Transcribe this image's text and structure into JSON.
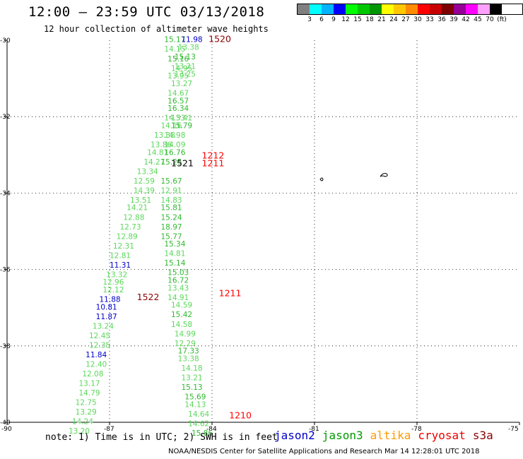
{
  "header": {
    "title": "12:00 – 23:59 UTC 03/13/2018",
    "subtitle": "12 hour collection of altimeter wave heights"
  },
  "scale": {
    "colors": [
      "#808080",
      "#00ffff",
      "#00b4ff",
      "#0000ff",
      "#00ff00",
      "#00c800",
      "#009600",
      "#ffff00",
      "#ffc800",
      "#ff8c00",
      "#ff0000",
      "#c80000",
      "#800000",
      "#960096",
      "#ff00ff",
      "#ffa0ff",
      "#000000"
    ],
    "ticks": [
      "3",
      "6",
      "9",
      "12",
      "15",
      "18",
      "21",
      "24",
      "27",
      "30",
      "33",
      "36",
      "39",
      "42",
      "45",
      "70",
      "(ft)"
    ]
  },
  "map": {
    "lat_labels": [
      "-30",
      "-32",
      "-34",
      "-36",
      "-38",
      "-40"
    ],
    "lon_labels": [
      "-90",
      "-87",
      "-84",
      "-81",
      "-78",
      "-75"
    ],
    "time_labels": [
      {
        "text": "1520",
        "lon": -84.1,
        "lat": -30.05,
        "color": "#8b0000"
      },
      {
        "text": "1212",
        "lon": -84.3,
        "lat": -33.1,
        "color": "#ff0000"
      },
      {
        "text": "1211",
        "lon": -84.3,
        "lat": -33.3,
        "color": "#ff0000"
      },
      {
        "text": "1521",
        "lon": -85.2,
        "lat": -33.3,
        "color": "#000000"
      },
      {
        "text": "1522",
        "lon": -86.2,
        "lat": -36.8,
        "color": "#8b0000"
      },
      {
        "text": "1211",
        "lon": -83.8,
        "lat": -36.7,
        "color": "#ff0000"
      },
      {
        "text": "1210",
        "lon": -83.5,
        "lat": -39.9,
        "color": "#ff0000"
      }
    ],
    "wave_readings": [
      {
        "v": "15.17",
        "lon": -85.4,
        "lat": -30.05,
        "c": "#2eb82e"
      },
      {
        "v": "11.98",
        "lon": -84.9,
        "lat": -30.05,
        "c": "#0000cc"
      },
      {
        "v": "14.15",
        "lon": -85.4,
        "lat": -30.3,
        "c": "#5bd75b"
      },
      {
        "v": "13.38",
        "lon": -85.0,
        "lat": -30.25,
        "c": "#5bd75b"
      },
      {
        "v": "15.16",
        "lon": -85.3,
        "lat": -30.55,
        "c": "#2eb82e"
      },
      {
        "v": "15.13",
        "lon": -85.1,
        "lat": -30.5,
        "c": "#2eb82e"
      },
      {
        "v": "14.95",
        "lon": -85.2,
        "lat": -30.8,
        "c": "#5bd75b"
      },
      {
        "v": "13.21",
        "lon": -85.1,
        "lat": -30.75,
        "c": "#5bd75b"
      },
      {
        "v": "13.95",
        "lon": -85.3,
        "lat": -31.0,
        "c": "#5bd75b"
      },
      {
        "v": "13.25",
        "lon": -85.1,
        "lat": -30.95,
        "c": "#5bd75b"
      },
      {
        "v": "13.27",
        "lon": -85.2,
        "lat": -31.2,
        "c": "#5bd75b"
      },
      {
        "v": "14.67",
        "lon": -85.3,
        "lat": -31.45,
        "c": "#5bd75b"
      },
      {
        "v": "16.57",
        "lon": -85.3,
        "lat": -31.65,
        "c": "#2eb82e"
      },
      {
        "v": "16.34",
        "lon": -85.3,
        "lat": -31.85,
        "c": "#2eb82e"
      },
      {
        "v": "14.53",
        "lon": -85.4,
        "lat": -32.1,
        "c": "#5bd75b"
      },
      {
        "v": "13.41",
        "lon": -85.2,
        "lat": -32.1,
        "c": "#5bd75b"
      },
      {
        "v": "14.16",
        "lon": -85.5,
        "lat": -32.3,
        "c": "#5bd75b"
      },
      {
        "v": "15.79",
        "lon": -85.2,
        "lat": -32.3,
        "c": "#2eb82e"
      },
      {
        "v": "13.38",
        "lon": -85.7,
        "lat": -32.55,
        "c": "#5bd75b"
      },
      {
        "v": "14.98",
        "lon": -85.4,
        "lat": -32.55,
        "c": "#5bd75b"
      },
      {
        "v": "13.86",
        "lon": -85.8,
        "lat": -32.8,
        "c": "#5bd75b"
      },
      {
        "v": "14.09",
        "lon": -85.4,
        "lat": -32.8,
        "c": "#5bd75b"
      },
      {
        "v": "14.81",
        "lon": -85.9,
        "lat": -33.0,
        "c": "#5bd75b"
      },
      {
        "v": "16.76",
        "lon": -85.4,
        "lat": -33.0,
        "c": "#2eb82e"
      },
      {
        "v": "14.27",
        "lon": -86.0,
        "lat": -33.25,
        "c": "#5bd75b"
      },
      {
        "v": "15.25",
        "lon": -85.5,
        "lat": -33.25,
        "c": "#2eb82e"
      },
      {
        "v": "13.34",
        "lon": -86.2,
        "lat": -33.5,
        "c": "#5bd75b"
      },
      {
        "v": "12.59",
        "lon": -86.3,
        "lat": -33.75,
        "c": "#5bd75b"
      },
      {
        "v": "15.67",
        "lon": -85.5,
        "lat": -33.75,
        "c": "#2eb82e"
      },
      {
        "v": "14.39",
        "lon": -86.3,
        "lat": -34.0,
        "c": "#5bd75b"
      },
      {
        "v": "12.91",
        "lon": -85.5,
        "lat": -34.0,
        "c": "#5bd75b"
      },
      {
        "v": "13.51",
        "lon": -86.4,
        "lat": -34.25,
        "c": "#5bd75b"
      },
      {
        "v": "14.83",
        "lon": -85.5,
        "lat": -34.25,
        "c": "#5bd75b"
      },
      {
        "v": "14.21",
        "lon": -86.5,
        "lat": -34.45,
        "c": "#5bd75b"
      },
      {
        "v": "15.81",
        "lon": -85.5,
        "lat": -34.45,
        "c": "#2eb82e"
      },
      {
        "v": "12.88",
        "lon": -86.6,
        "lat": -34.7,
        "c": "#5bd75b"
      },
      {
        "v": "15.24",
        "lon": -85.5,
        "lat": -34.7,
        "c": "#2eb82e"
      },
      {
        "v": "12.73",
        "lon": -86.7,
        "lat": -34.95,
        "c": "#5bd75b"
      },
      {
        "v": "18.97",
        "lon": -85.5,
        "lat": -34.95,
        "c": "#2eb82e"
      },
      {
        "v": "12.89",
        "lon": -86.8,
        "lat": -35.2,
        "c": "#5bd75b"
      },
      {
        "v": "15.77",
        "lon": -85.5,
        "lat": -35.2,
        "c": "#2eb82e"
      },
      {
        "v": "12.31",
        "lon": -86.9,
        "lat": -35.45,
        "c": "#5bd75b"
      },
      {
        "v": "15.34",
        "lon": -85.4,
        "lat": -35.4,
        "c": "#2eb82e"
      },
      {
        "v": "12.81",
        "lon": -87.0,
        "lat": -35.7,
        "c": "#5bd75b"
      },
      {
        "v": "14.81",
        "lon": -85.4,
        "lat": -35.65,
        "c": "#5bd75b"
      },
      {
        "v": "11.31",
        "lon": -87.0,
        "lat": -35.95,
        "c": "#0000cc"
      },
      {
        "v": "15.14",
        "lon": -85.4,
        "lat": -35.9,
        "c": "#2eb82e"
      },
      {
        "v": "13.32",
        "lon": -87.1,
        "lat": -36.2,
        "c": "#5bd75b"
      },
      {
        "v": "15.03",
        "lon": -85.3,
        "lat": -36.15,
        "c": "#2eb82e"
      },
      {
        "v": "12.96",
        "lon": -87.2,
        "lat": -36.4,
        "c": "#5bd75b"
      },
      {
        "v": "16.72",
        "lon": -85.3,
        "lat": -36.35,
        "c": "#2eb82e"
      },
      {
        "v": "12.12",
        "lon": -87.2,
        "lat": -36.6,
        "c": "#5bd75b"
      },
      {
        "v": "13.43",
        "lon": -85.3,
        "lat": -36.55,
        "c": "#5bd75b"
      },
      {
        "v": "11.88",
        "lon": -87.3,
        "lat": -36.85,
        "c": "#0000cc"
      },
      {
        "v": "14.91",
        "lon": -85.3,
        "lat": -36.8,
        "c": "#5bd75b"
      },
      {
        "v": "10.81",
        "lon": -87.4,
        "lat": -37.05,
        "c": "#0000cc"
      },
      {
        "v": "14.59",
        "lon": -85.2,
        "lat": -37.0,
        "c": "#5bd75b"
      },
      {
        "v": "11.87",
        "lon": -87.4,
        "lat": -37.3,
        "c": "#0000cc"
      },
      {
        "v": "15.42",
        "lon": -85.2,
        "lat": -37.25,
        "c": "#2eb82e"
      },
      {
        "v": "13.24",
        "lon": -87.5,
        "lat": -37.55,
        "c": "#5bd75b"
      },
      {
        "v": "14.58",
        "lon": -85.2,
        "lat": -37.5,
        "c": "#5bd75b"
      },
      {
        "v": "12.45",
        "lon": -87.6,
        "lat": -37.8,
        "c": "#5bd75b"
      },
      {
        "v": "14.99",
        "lon": -85.1,
        "lat": -37.75,
        "c": "#5bd75b"
      },
      {
        "v": "12.35",
        "lon": -87.6,
        "lat": -38.05,
        "c": "#5bd75b"
      },
      {
        "v": "12.29",
        "lon": -85.1,
        "lat": -38.0,
        "c": "#5bd75b"
      },
      {
        "v": "11.84",
        "lon": -87.7,
        "lat": -38.3,
        "c": "#0000cc"
      },
      {
        "v": "17.33",
        "lon": -85.0,
        "lat": -38.2,
        "c": "#2eb82e"
      },
      {
        "v": "13.38",
        "lon": -85.0,
        "lat": -38.4,
        "c": "#5bd75b"
      },
      {
        "v": "12.40",
        "lon": -87.7,
        "lat": -38.55,
        "c": "#5bd75b"
      },
      {
        "v": "14.18",
        "lon": -84.9,
        "lat": -38.65,
        "c": "#5bd75b"
      },
      {
        "v": "12.08",
        "lon": -87.8,
        "lat": -38.8,
        "c": "#5bd75b"
      },
      {
        "v": "13.21",
        "lon": -84.9,
        "lat": -38.9,
        "c": "#5bd75b"
      },
      {
        "v": "13.17",
        "lon": -87.9,
        "lat": -39.05,
        "c": "#5bd75b"
      },
      {
        "v": "15.13",
        "lon": -84.9,
        "lat": -39.15,
        "c": "#2eb82e"
      },
      {
        "v": "14.79",
        "lon": -87.9,
        "lat": -39.3,
        "c": "#5bd75b"
      },
      {
        "v": "15.69",
        "lon": -84.8,
        "lat": -39.4,
        "c": "#2eb82e"
      },
      {
        "v": "12.75",
        "lon": -88.0,
        "lat": -39.55,
        "c": "#5bd75b"
      },
      {
        "v": "14.13",
        "lon": -84.8,
        "lat": -39.6,
        "c": "#5bd75b"
      },
      {
        "v": "13.29",
        "lon": -88.0,
        "lat": -39.8,
        "c": "#5bd75b"
      },
      {
        "v": "14.64",
        "lon": -84.7,
        "lat": -39.85,
        "c": "#5bd75b"
      },
      {
        "v": "14.24",
        "lon": -88.1,
        "lat": -40.05,
        "c": "#5bd75b"
      },
      {
        "v": "14.62",
        "lon": -84.7,
        "lat": -40.1,
        "c": "#5bd75b"
      },
      {
        "v": "13.20",
        "lon": -88.2,
        "lat": -40.3,
        "c": "#5bd75b"
      },
      {
        "v": "15.86",
        "lon": -84.6,
        "lat": -40.35,
        "c": "#2eb82e"
      }
    ]
  },
  "footer": {
    "note": "note: 1) Time is in UTC; 2) SWH is in feet",
    "satellites": [
      {
        "name": "jason2",
        "color": "#0000cc"
      },
      {
        "name": "jason3",
        "color": "#009900"
      },
      {
        "name": "altika",
        "color": "#ff9900"
      },
      {
        "name": "cryosat",
        "color": "#ee0000"
      },
      {
        "name": "s3a",
        "color": "#8b0000"
      }
    ],
    "credit": "NOAA/NESDIS Center for Satellite Applications and Research    Mar 14 12:28:01 UTC 2018"
  }
}
